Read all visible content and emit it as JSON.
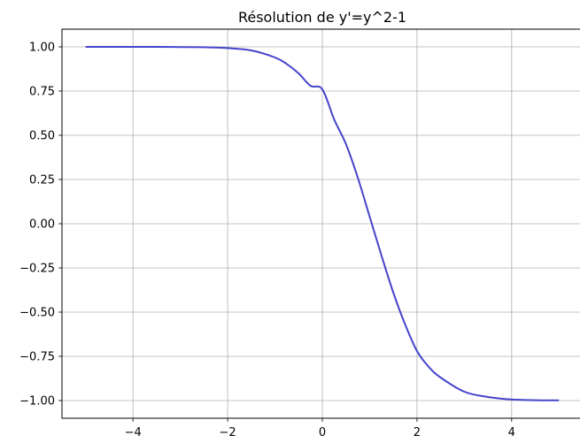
{
  "chart_data": {
    "type": "line",
    "title": "Résolution de y'=y^2-1",
    "xlabel": "",
    "ylabel": "",
    "xlim": [
      -5.5,
      5.5
    ],
    "ylim": [
      -1.1,
      1.1
    ],
    "grid": true,
    "x_ticks": [
      -4,
      -2,
      0,
      2,
      4
    ],
    "x_tick_labels": [
      "−4",
      "−2",
      "0",
      "2",
      "4"
    ],
    "y_ticks": [
      1.0,
      0.75,
      0.5,
      0.25,
      0.0,
      -0.25,
      -0.5,
      -0.75,
      -1.0
    ],
    "y_tick_labels": [
      "1.00",
      "0.75",
      "0.50",
      "0.25",
      "0.00",
      "−0.25",
      "−0.50",
      "−0.75",
      "−1.00"
    ],
    "series": [
      {
        "color": "#4444cc",
        "x": [
          -5,
          -4.5,
          -4,
          -3.5,
          -3,
          -2.5,
          -2,
          -1.5,
          -1,
          -0.75,
          -0.5,
          -0.25,
          0,
          0.25,
          0.5,
          0.75,
          1,
          1.25,
          1.5,
          1.75,
          2,
          2.25,
          2.5,
          3,
          3.5,
          4,
          4.5,
          5
        ],
        "y": [
          1.0,
          1.0,
          1.0,
          1.0,
          0.999,
          0.998,
          0.993,
          0.98,
          0.94,
          0.903,
          0.85,
          0.78,
          0.76,
          0.59,
          0.45,
          0.26,
          0.04,
          -0.18,
          -0.39,
          -0.57,
          -0.72,
          -0.81,
          -0.87,
          -0.95,
          -0.98,
          -0.994,
          -0.998,
          -0.999
        ]
      }
    ]
  }
}
